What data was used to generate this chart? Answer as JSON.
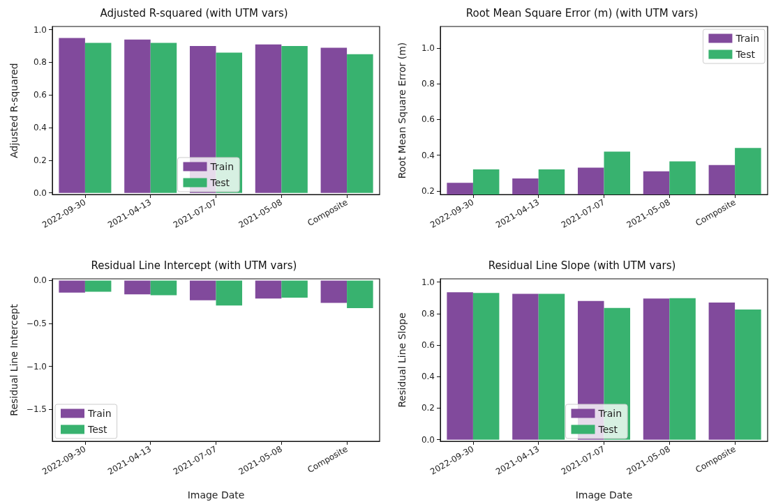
{
  "chart_data": [
    {
      "type": "bar",
      "title": "Adjusted R-squared (with UTM vars)",
      "ylabel": "Adjusted R-squared",
      "categories": [
        "2022-09-30",
        "2021-04-13",
        "2021-07-07",
        "2021-05-08",
        "Composite"
      ],
      "series": [
        {
          "name": "Train",
          "color": "#814a9c",
          "values": [
            0.95,
            0.94,
            0.9,
            0.91,
            0.89
          ]
        },
        {
          "name": "Test",
          "color": "#38b26f",
          "values": [
            0.92,
            0.92,
            0.86,
            0.9,
            0.85
          ]
        }
      ],
      "ylim": [
        -0.01,
        1.02
      ],
      "yticks": [
        {
          "value": 0,
          "label": "0.0"
        },
        0.2,
        0.4,
        0.6,
        0.8,
        {
          "value": 1,
          "label": "1.0"
        }
      ],
      "grid": false,
      "legend": "bottom"
    },
    {
      "type": "bar",
      "title": "Root Mean Square Error (m) (with UTM vars)",
      "ylabel": "Root Mean Square Error (m)",
      "categories": [
        "2022-09-30",
        "2021-04-13",
        "2021-07-07",
        "2021-05-08",
        "Composite"
      ],
      "series": [
        {
          "name": "Train",
          "color": "#814a9c",
          "values": [
            0.245,
            0.27,
            0.33,
            0.31,
            0.345
          ]
        },
        {
          "name": "Test",
          "color": "#38b26f",
          "values": [
            0.32,
            0.32,
            0.42,
            0.365,
            0.44
          ]
        }
      ],
      "ylim": [
        0.18,
        1.12
      ],
      "yticks": [
        0.2,
        0.4,
        0.6,
        0.8,
        {
          "value": 1,
          "label": "1.0"
        }
      ],
      "grid": false,
      "legend": "top right"
    },
    {
      "type": "bar",
      "title": "Residual Line Intercept (with UTM vars)",
      "ylabel": "Residual Line Intercept",
      "xlabel": "Image Date",
      "categories": [
        "2022-09-30",
        "2021-04-13",
        "2021-07-07",
        "2021-05-08",
        "Composite"
      ],
      "series": [
        {
          "name": "Train",
          "color": "#814a9c",
          "values": [
            -0.14,
            -0.16,
            -0.23,
            -0.21,
            -0.26
          ]
        },
        {
          "name": "Test",
          "color": "#38b26f",
          "values": [
            -0.13,
            -0.17,
            -0.29,
            -0.2,
            -0.32
          ]
        }
      ],
      "ylim": [
        -1.87,
        0.02
      ],
      "yticks": [
        {
          "value": -1.5,
          "label": "−1.5"
        },
        {
          "value": -1,
          "label": "−1.0"
        },
        {
          "value": -0.5,
          "label": "−0.5"
        },
        {
          "value": 0,
          "label": "0.0"
        }
      ],
      "grid": false,
      "legend": "bottom left"
    },
    {
      "type": "bar",
      "title": "Residual Line Slope (with UTM vars)",
      "ylabel": "Residual Line Slope",
      "xlabel": "Image Date",
      "categories": [
        "2022-09-30",
        "2021-04-13",
        "2021-07-07",
        "2021-05-08",
        "Composite"
      ],
      "series": [
        {
          "name": "Train",
          "color": "#814a9c",
          "values": [
            0.935,
            0.925,
            0.88,
            0.895,
            0.87
          ]
        },
        {
          "name": "Test",
          "color": "#38b26f",
          "values": [
            0.93,
            0.925,
            0.835,
            0.897,
            0.825
          ]
        }
      ],
      "ylim": [
        -0.01,
        1.02
      ],
      "yticks": [
        {
          "value": 0,
          "label": "0.0"
        },
        0.2,
        0.4,
        0.6,
        0.8,
        {
          "value": 1,
          "label": "1.0"
        }
      ],
      "grid": false,
      "legend": "bottom"
    }
  ]
}
